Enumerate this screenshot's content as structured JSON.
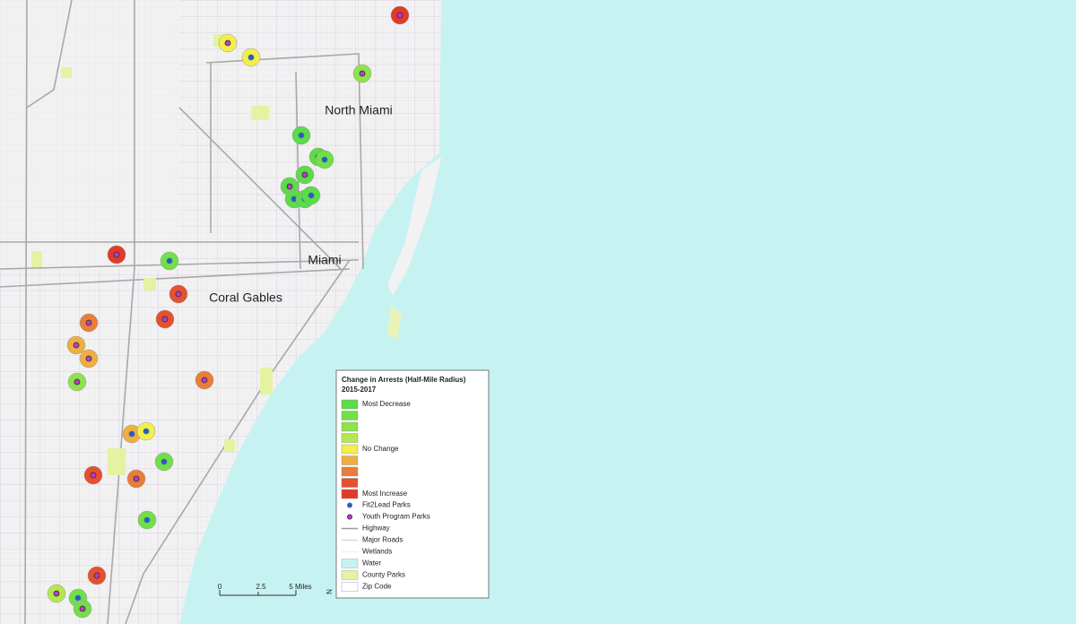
{
  "map": {
    "labels": [
      "North Miami",
      "Miami",
      "Coral Gables"
    ],
    "legend": {
      "title": "Change in Arrests (Half-Mile Radius)",
      "subtitle": "2015-2017",
      "classes": [
        {
          "label": "Most Decrease",
          "color": "#5bdc48"
        },
        {
          "color": "#72df4a"
        },
        {
          "color": "#8ee24c"
        },
        {
          "color": "#b4e84e"
        },
        {
          "label": "No Change",
          "color": "#f2ef4a"
        },
        {
          "color": "#efae42"
        },
        {
          "color": "#ea7d3a"
        },
        {
          "color": "#e5502f"
        },
        {
          "label": "Most Increase",
          "color": "#e2392b"
        }
      ],
      "symbols": [
        {
          "label": "Fit2Lead Parks",
          "color": "#3b4fd0"
        },
        {
          "label": "Youth Program Parks",
          "color": "#b83dc9"
        }
      ],
      "layers": [
        "Highway",
        "Major Roads",
        "Wetlands",
        "Water",
        "County Parks",
        "Zip Code"
      ]
    },
    "scale": {
      "ticks": [
        "0",
        "2.5",
        "5 Miles"
      ],
      "north": "N"
    }
  }
}
